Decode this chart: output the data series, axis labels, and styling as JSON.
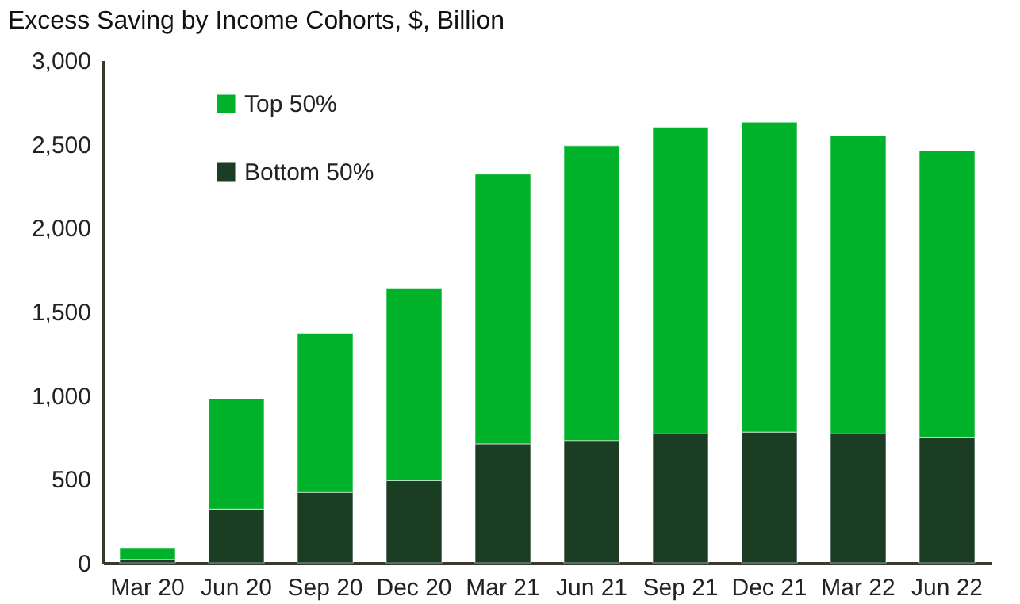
{
  "chart_data": {
    "type": "bar",
    "title": "Excess Saving by Income Cohorts, $, Billion",
    "stacked": true,
    "categories": [
      "Mar 20",
      "Jun 20",
      "Sep 20",
      "Dec 20",
      "Mar 21",
      "Jun 21",
      "Sep 21",
      "Dec 21",
      "Mar 22",
      "Jun 22"
    ],
    "series": [
      {
        "name": "Bottom 50%",
        "color": "#1a3d24",
        "values": [
          20,
          320,
          420,
          490,
          710,
          730,
          770,
          780,
          770,
          750
        ]
      },
      {
        "name": "Top 50%",
        "color": "#00b22a",
        "values": [
          70,
          660,
          950,
          1150,
          1610,
          1760,
          1830,
          1850,
          1780,
          1710
        ]
      }
    ],
    "ylim": [
      0,
      3000
    ],
    "yticks": [
      0,
      500,
      {
        "value": 1000,
        "label": "1,000"
      },
      {
        "value": 1500,
        "label": "1,500"
      },
      {
        "value": 2000,
        "label": "2,000"
      },
      {
        "value": 2500,
        "label": "2,500"
      },
      {
        "value": 3000,
        "label": "3,000"
      }
    ],
    "grid": false,
    "legend": "top left"
  }
}
